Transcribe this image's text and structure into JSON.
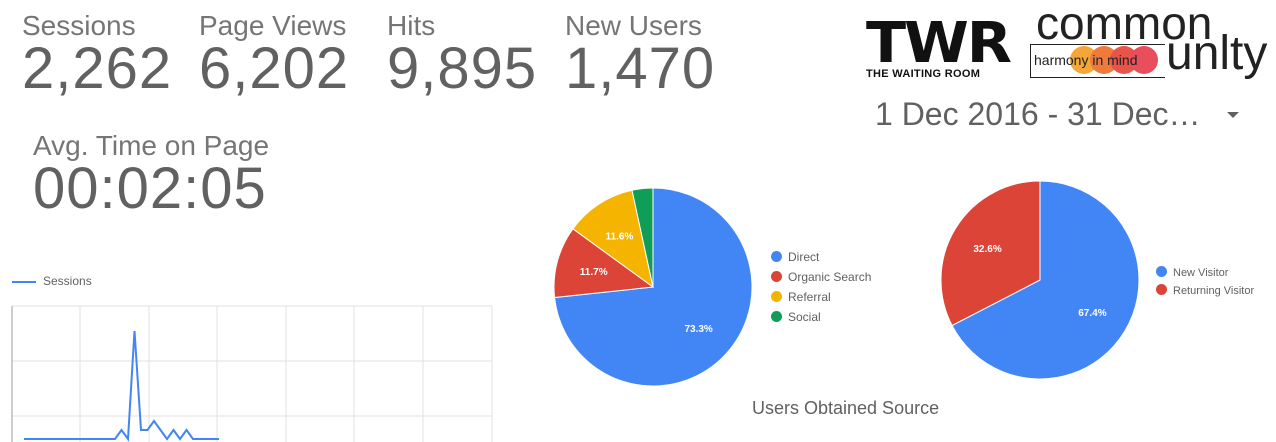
{
  "metrics": {
    "sessions": {
      "label": "Sessions",
      "value": "2,262"
    },
    "page_views": {
      "label": "Page Views",
      "value": "6,202"
    },
    "hits": {
      "label": "Hits",
      "value": "9,895"
    },
    "new_users": {
      "label": "New Users",
      "value": "1,470"
    },
    "avg_time": {
      "label": "Avg. Time on Page",
      "value": "00:02:05"
    }
  },
  "logos": {
    "twr": {
      "mark": "TWR",
      "subtitle": "THE WAITING ROOM"
    },
    "common_unity": {
      "top": "common",
      "tagline": "harmony in mind",
      "bottom": "unlty"
    }
  },
  "date_range": {
    "label": "1 Dec 2016 - 31 Dec…",
    "icon": "chevron-down-icon"
  },
  "colors": {
    "blue": "#4285f4",
    "red": "#db4437",
    "yellow": "#f4b400",
    "green": "#0f9d58"
  },
  "chart_data": [
    {
      "type": "line",
      "legend": "Sessions",
      "series": [
        {
          "name": "Sessions",
          "color": "#4285f4",
          "values": [
            2,
            2,
            2,
            2,
            2,
            2,
            2,
            2,
            2,
            2,
            2,
            2,
            2,
            2,
            2,
            3,
            2,
            14,
            3,
            3,
            4,
            3,
            2,
            3,
            2,
            3,
            2,
            2,
            2,
            2,
            2
          ]
        }
      ]
    },
    {
      "type": "pie",
      "title": "Users Obtained Source",
      "slices": [
        {
          "label": "Direct",
          "value": 73.3,
          "text": "73.3%",
          "color": "#4285f4"
        },
        {
          "label": "Organic Search",
          "value": 11.7,
          "text": "11.7%",
          "color": "#db4437"
        },
        {
          "label": "Referral",
          "value": 11.6,
          "text": "11.6%",
          "color": "#f4b400"
        },
        {
          "label": "Social",
          "value": 3.4,
          "text": "",
          "color": "#0f9d58"
        }
      ]
    },
    {
      "type": "pie",
      "slices": [
        {
          "label": "New Visitor",
          "value": 67.4,
          "text": "67.4%",
          "color": "#4285f4"
        },
        {
          "label": "Returning Visitor",
          "value": 32.6,
          "text": "32.6%",
          "color": "#db4437"
        }
      ]
    }
  ]
}
